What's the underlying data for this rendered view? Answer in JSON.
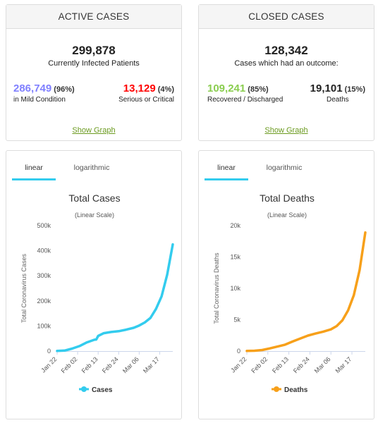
{
  "active": {
    "title": "ACTIVE CASES",
    "total": "299,878",
    "total_label": "Currently Infected Patients",
    "mild_num": "286,749",
    "mild_pct": "96%",
    "mild_label": "in Mild Condition",
    "serious_num": "13,129",
    "serious_pct": "4%",
    "serious_label": "Serious or Critical",
    "show_graph": "Show Graph"
  },
  "closed": {
    "title": "CLOSED CASES",
    "total": "128,342",
    "total_label": "Cases which had an outcome:",
    "recovered_num": "109,241",
    "recovered_pct": "85%",
    "recovered_label": "Recovered / Discharged",
    "deaths_num": "19,101",
    "deaths_pct": "15%",
    "deaths_label": "Deaths",
    "show_graph": "Show Graph"
  },
  "colors": {
    "mild": "#8080ff",
    "serious": "#ff0000",
    "recovered": "#8acd4f",
    "cases_line": "#33ccee",
    "deaths_line": "#f7a01a"
  },
  "tabs": {
    "linear": "linear",
    "log": "logarithmic"
  },
  "chart_data": [
    {
      "type": "line",
      "title": "Total Cases",
      "subtitle": "(Linear Scale)",
      "ylabel": "Total Coronavirus Cases",
      "xlabel": "",
      "x_ticks": [
        "Jan 22",
        "Feb 02",
        "Feb 13",
        "Feb 24",
        "Mar 06",
        "Mar 17"
      ],
      "y_ticks": [
        "0",
        "100k",
        "200k",
        "300k",
        "400k",
        "500k"
      ],
      "ylim": [
        0,
        500000
      ],
      "grid": false,
      "legend": "bottom-center",
      "series": [
        {
          "name": "Cases",
          "x": [
            "Jan 22",
            "Jan 26",
            "Jan 30",
            "Feb 03",
            "Feb 07",
            "Feb 11",
            "Feb 12",
            "Feb 13",
            "Feb 16",
            "Feb 20",
            "Feb 24",
            "Feb 28",
            "Mar 03",
            "Mar 06",
            "Mar 09",
            "Mar 12",
            "Mar 15",
            "Mar 18",
            "Mar 21",
            "Mar 24"
          ],
          "values": [
            580,
            2100,
            9800,
            20000,
            34900,
            45100,
            46000,
            60300,
            71300,
            76200,
            79300,
            85400,
            92800,
            102000,
            114000,
            132000,
            168000,
            218000,
            305000,
            425000
          ]
        }
      ]
    },
    {
      "type": "line",
      "title": "Total Deaths",
      "subtitle": "(Linear Scale)",
      "ylabel": "Total Coronavirus Deaths",
      "xlabel": "",
      "x_ticks": [
        "Jan 22",
        "Feb 02",
        "Feb 13",
        "Feb 24",
        "Mar 06",
        "Mar 17"
      ],
      "y_ticks": [
        "0",
        "5k",
        "10k",
        "15k",
        "20k"
      ],
      "ylim": [
        0,
        20000
      ],
      "grid": false,
      "legend": "bottom-center",
      "series": [
        {
          "name": "Deaths",
          "x": [
            "Jan 22",
            "Jan 26",
            "Jan 30",
            "Feb 03",
            "Feb 07",
            "Feb 11",
            "Feb 15",
            "Feb 19",
            "Feb 23",
            "Feb 27",
            "Mar 02",
            "Mar 06",
            "Mar 09",
            "Mar 12",
            "Mar 15",
            "Mar 18",
            "Mar 21",
            "Mar 24"
          ],
          "values": [
            17,
            56,
            170,
            427,
            724,
            1018,
            1526,
            2014,
            2470,
            2800,
            3100,
            3460,
            3990,
            4900,
            6500,
            8900,
            12900,
            18900
          ]
        }
      ]
    }
  ]
}
